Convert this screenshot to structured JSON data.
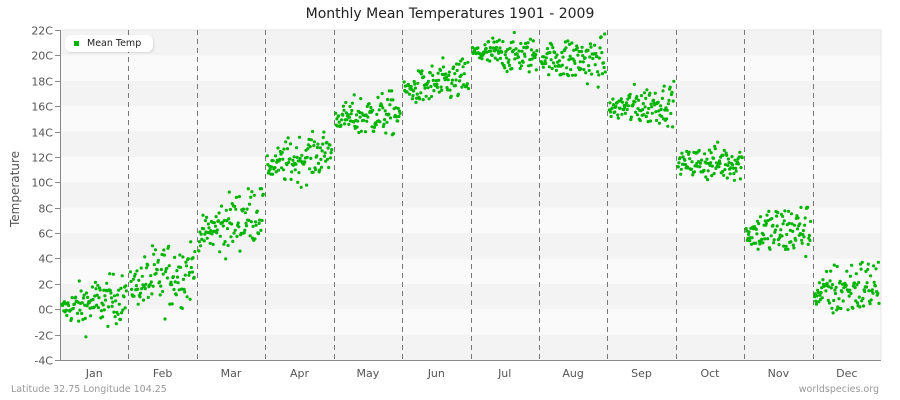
{
  "title": "Monthly Mean Temperatures 1901 - 2009",
  "footer": {
    "location": "Latitude 32.75 Longitude 104.25",
    "source": "worldspecies.org"
  },
  "colors": {
    "point": "#00b400",
    "band_dark": "#f3f3f3",
    "band_light": "#fafafa",
    "divider": "#777777",
    "axis": "#888888"
  },
  "chart_data": {
    "type": "scatter",
    "title": "Monthly Mean Temperatures 1901 - 2009",
    "xlabel": "",
    "ylabel": "Temperature",
    "ylim": [
      -4,
      22
    ],
    "y_ticks": [
      "-4C",
      "-2C",
      "0C",
      "2C",
      "4C",
      "6C",
      "8C",
      "10C",
      "12C",
      "14C",
      "16C",
      "18C",
      "20C",
      "22C"
    ],
    "categories": [
      "Jan",
      "Feb",
      "Mar",
      "Apr",
      "May",
      "Jun",
      "Jul",
      "Aug",
      "Sep",
      "Oct",
      "Nov",
      "Dec"
    ],
    "legend": [
      {
        "name": "Mean Temp",
        "color": "#00b400"
      }
    ],
    "legend_position": "top-left",
    "grid": "horizontal bands, dashed month dividers",
    "years": [
      1901,
      2009
    ],
    "points_per_month": 109,
    "series": [
      {
        "name": "Mean Temp",
        "month_summary": [
          {
            "month": "Jan",
            "start": 0.0,
            "end": 1.0,
            "min": -2.2,
            "max": 2.8
          },
          {
            "month": "Feb",
            "start": 1.8,
            "end": 3.2,
            "min": -0.8,
            "max": 6.0
          },
          {
            "month": "Mar",
            "start": 5.8,
            "end": 7.8,
            "min": 3.5,
            "max": 9.5
          },
          {
            "month": "Apr",
            "start": 11.2,
            "end": 12.5,
            "min": 9.3,
            "max": 14.0
          },
          {
            "month": "May",
            "start": 15.0,
            "end": 15.5,
            "min": 13.2,
            "max": 17.5
          },
          {
            "month": "Jun",
            "start": 17.2,
            "end": 18.2,
            "min": 15.8,
            "max": 20.0
          },
          {
            "month": "Jul",
            "start": 20.2,
            "end": 20.0,
            "min": 18.2,
            "max": 21.8
          },
          {
            "month": "Aug",
            "start": 19.8,
            "end": 19.6,
            "min": 17.3,
            "max": 22.0
          },
          {
            "month": "Sep",
            "start": 15.8,
            "end": 16.3,
            "min": 14.2,
            "max": 18.2
          },
          {
            "month": "Oct",
            "start": 11.5,
            "end": 11.6,
            "min": 9.8,
            "max": 13.5
          },
          {
            "month": "Nov",
            "start": 6.0,
            "end": 6.3,
            "min": 3.3,
            "max": 8.8
          },
          {
            "month": "Dec",
            "start": 1.2,
            "end": 2.0,
            "min": -2.2,
            "max": 3.7
          }
        ]
      }
    ]
  }
}
